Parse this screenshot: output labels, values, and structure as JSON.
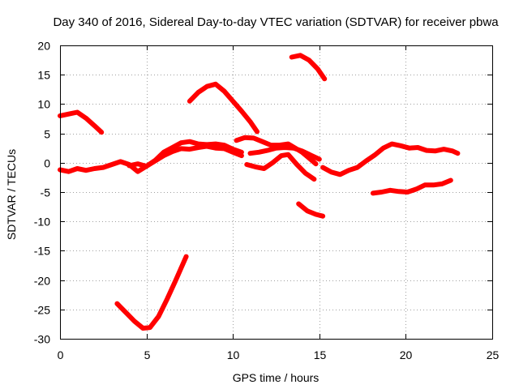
{
  "chart_data": {
    "type": "line",
    "title": "Day 340 of 2016, Sidereal Day-to-day VTEC variation (SDTVAR) for receiver pbwa",
    "xlabel": "GPS time / hours",
    "ylabel": "SDTVAR / TECUs",
    "xlim": [
      0,
      25
    ],
    "ylim": [
      -30,
      20
    ],
    "xticks": [
      0,
      5,
      10,
      15,
      20,
      25
    ],
    "yticks": [
      -30,
      -25,
      -20,
      -15,
      -10,
      -5,
      0,
      5,
      10,
      15,
      20
    ],
    "grid": true,
    "color": "#ff0000",
    "series": [
      {
        "name": "s1",
        "x": [
          0,
          0.5,
          1.0,
          1.5,
          2.0,
          2.4
        ],
        "y": [
          8,
          8.3,
          8.6,
          7.6,
          6.3,
          5.2
        ]
      },
      {
        "name": "s2",
        "x": [
          0,
          0.5,
          1.0,
          1.5,
          2.0,
          2.5,
          3.0,
          3.5,
          4.0,
          4.5,
          5.0,
          5.5,
          6.0,
          6.5,
          7.0,
          7.5,
          8.0,
          8.5,
          9.0,
          9.5,
          10.0,
          10.5
        ],
        "y": [
          -1.2,
          -1.5,
          -1.0,
          -1.3,
          -1.0,
          -0.8,
          -0.3,
          0.2,
          -0.3,
          -1.5,
          -0.6,
          0.3,
          1.2,
          1.9,
          2.4,
          2.3,
          2.6,
          2.8,
          2.5,
          2.4,
          1.8,
          1.2
        ]
      },
      {
        "name": "s3",
        "x": [
          4.0,
          4.5,
          5.0,
          5.5,
          6.0,
          6.5,
          7.0,
          7.5,
          8.0,
          8.5,
          9.0,
          9.5,
          10.0,
          10.5
        ],
        "y": [
          -0.5,
          -0.2,
          -0.6,
          0.4,
          1.8,
          2.6,
          3.4,
          3.6,
          3.2,
          3.1,
          3.2,
          3.0,
          2.3,
          1.8
        ]
      },
      {
        "name": "s4",
        "x": [
          7.5,
          8.0,
          8.5,
          9.0,
          9.5,
          10.0,
          10.5,
          11.0,
          11.4
        ],
        "y": [
          10.5,
          12.0,
          13.0,
          13.4,
          12.2,
          10.5,
          8.8,
          7.0,
          5.3
        ]
      },
      {
        "name": "s5",
        "x": [
          3.3,
          3.8,
          4.3,
          4.8,
          5.2,
          5.7,
          6.2,
          6.7,
          7.0,
          7.3
        ],
        "y": [
          -24,
          -25.5,
          -27,
          -28.2,
          -28.1,
          -26.2,
          -23.2,
          -20,
          -18,
          -16
        ]
      },
      {
        "name": "s6",
        "x": [
          10.2,
          10.7,
          11.2,
          11.7,
          12.2,
          12.7,
          13.2,
          13.6,
          14.0,
          14.4,
          14.8
        ],
        "y": [
          3.8,
          4.3,
          4.2,
          3.6,
          3.0,
          3.0,
          3.2,
          2.5,
          1.8,
          0.8,
          -0.2
        ]
      },
      {
        "name": "s7",
        "x": [
          11.0,
          11.5,
          12.0,
          12.5,
          13.0,
          13.5,
          14.0,
          14.5,
          15.0
        ],
        "y": [
          1.6,
          1.8,
          2.1,
          2.5,
          2.6,
          2.5,
          2.0,
          1.3,
          0.6
        ]
      },
      {
        "name": "s8",
        "x": [
          10.8,
          11.3,
          11.8,
          12.3,
          12.8,
          13.2,
          13.7,
          14.2,
          14.7
        ],
        "y": [
          -0.3,
          -0.7,
          -1.0,
          0.0,
          1.2,
          1.4,
          -0.3,
          -1.8,
          -2.8
        ]
      },
      {
        "name": "s9",
        "x": [
          13.4,
          13.9,
          14.4,
          14.9,
          15.3
        ],
        "y": [
          18.0,
          18.3,
          17.5,
          16.0,
          14.3
        ]
      },
      {
        "name": "s10",
        "x": [
          13.8,
          14.3,
          14.8,
          15.2
        ],
        "y": [
          -7.0,
          -8.2,
          -8.8,
          -9.1
        ]
      },
      {
        "name": "s11",
        "x": [
          15.2,
          15.7,
          16.2,
          16.7,
          17.2,
          17.7,
          18.2,
          18.7,
          19.2,
          19.7,
          20.2,
          20.7,
          21.2,
          21.7,
          22.2,
          22.7,
          23.0
        ],
        "y": [
          -0.8,
          -1.6,
          -2.0,
          -1.3,
          -0.8,
          0.3,
          1.3,
          2.5,
          3.2,
          2.9,
          2.5,
          2.6,
          2.1,
          2.0,
          2.3,
          2.0,
          1.6
        ]
      },
      {
        "name": "s12",
        "x": [
          18.1,
          18.6,
          19.1,
          19.6,
          20.1,
          20.6,
          21.1,
          21.6,
          22.1,
          22.6
        ],
        "y": [
          -5.2,
          -5.0,
          -4.7,
          -4.9,
          -5.0,
          -4.5,
          -3.8,
          -3.8,
          -3.6,
          -3.0
        ]
      }
    ]
  }
}
